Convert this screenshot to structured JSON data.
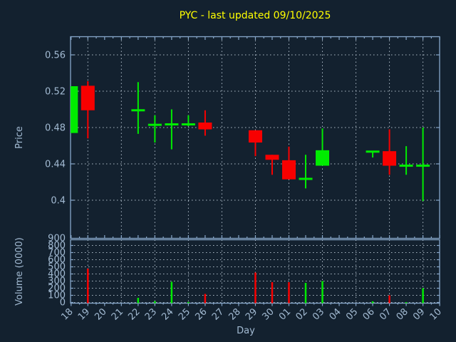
{
  "title": "PYC - last updated 09/10/2025",
  "colors": {
    "background": "#13212f",
    "axis_frame": "#87a7ca",
    "grid": "#c9d6e2",
    "tick_text": "#a3bbd3",
    "title_text": "#ffff00",
    "candle_up": "#00ec00",
    "candle_down": "#f80000"
  },
  "chart_data": [
    {
      "type": "candlestick",
      "title": "PYC - last updated 09/10/2025",
      "ylabel": "Price",
      "ylim": [
        0.3575,
        0.58
      ],
      "grid": "dotted, horizontal at yticks, vertical every other day starting 19",
      "legend": "none",
      "yticks": [
        {
          "label": "0.56",
          "value": 0.56
        },
        {
          "label": "0.52",
          "value": 0.52
        },
        {
          "label": "0.48",
          "value": 0.48
        },
        {
          "label": "0.44",
          "value": 0.44
        },
        {
          "label": "0.4",
          "value": 0.4
        }
      ],
      "categories": [
        "18",
        "19",
        "20",
        "21",
        "22",
        "23",
        "24",
        "25",
        "26",
        "27",
        "28",
        "29",
        "30",
        "01",
        "02",
        "03",
        "04",
        "05",
        "06",
        "07",
        "08",
        "09",
        "10"
      ],
      "candles": [
        {
          "day": "18",
          "open": 0.474,
          "high": 0.5255,
          "low": 0.474,
          "close": 0.5255,
          "color": "green"
        },
        {
          "day": "19",
          "open": 0.526,
          "high": 0.531,
          "low": 0.468,
          "close": 0.499,
          "color": "red"
        },
        {
          "day": "22",
          "open": 0.499,
          "high": 0.53,
          "low": 0.473,
          "close": 0.499,
          "color": "green"
        },
        {
          "day": "23",
          "open": 0.483,
          "high": 0.4935,
          "low": 0.4635,
          "close": 0.483,
          "color": "green"
        },
        {
          "day": "24",
          "open": 0.4835,
          "high": 0.5,
          "low": 0.456,
          "close": 0.4835,
          "color": "green"
        },
        {
          "day": "25",
          "open": 0.4835,
          "high": 0.4935,
          "low": 0.4815,
          "close": 0.4835,
          "color": "green"
        },
        {
          "day": "26",
          "open": 0.4855,
          "high": 0.499,
          "low": 0.471,
          "close": 0.478,
          "color": "red"
        },
        {
          "day": "29",
          "open": 0.477,
          "high": 0.477,
          "low": 0.4485,
          "close": 0.4635,
          "color": "red"
        },
        {
          "day": "30",
          "open": 0.45,
          "high": 0.45,
          "low": 0.428,
          "close": 0.4445,
          "color": "red"
        },
        {
          "day": "01",
          "open": 0.444,
          "high": 0.459,
          "low": 0.423,
          "close": 0.423,
          "color": "red"
        },
        {
          "day": "02",
          "open": 0.4235,
          "high": 0.45,
          "low": 0.413,
          "close": 0.4235,
          "color": "green"
        },
        {
          "day": "03",
          "open": 0.438,
          "high": 0.479,
          "low": 0.438,
          "close": 0.455,
          "color": "green"
        },
        {
          "day": "06",
          "open": 0.4535,
          "high": 0.4535,
          "low": 0.447,
          "close": 0.4535,
          "color": "green"
        },
        {
          "day": "07",
          "open": 0.454,
          "high": 0.478,
          "low": 0.428,
          "close": 0.438,
          "color": "red"
        },
        {
          "day": "08",
          "open": 0.438,
          "high": 0.4595,
          "low": 0.428,
          "close": 0.438,
          "color": "green"
        },
        {
          "day": "09",
          "open": 0.438,
          "high": 0.48,
          "low": 0.399,
          "close": 0.438,
          "color": "green"
        }
      ]
    },
    {
      "type": "bar",
      "ylabel": "Volume (0000)",
      "xlabel": "Day",
      "ylim": [
        0,
        900
      ],
      "grid": "dotted, horizontal every 100, vertical every other day starting 19",
      "yticks": [
        {
          "label": "900",
          "value": 900
        },
        {
          "label": "800",
          "value": 800
        },
        {
          "label": "700",
          "value": 700
        },
        {
          "label": "600",
          "value": 600
        },
        {
          "label": "500",
          "value": 500
        },
        {
          "label": "400",
          "value": 400
        },
        {
          "label": "300",
          "value": 300
        },
        {
          "label": "200",
          "value": 200
        },
        {
          "label": "100",
          "value": 100
        },
        {
          "label": "0",
          "value": 0
        }
      ],
      "categories": [
        "18",
        "19",
        "20",
        "21",
        "22",
        "23",
        "24",
        "25",
        "26",
        "27",
        "28",
        "29",
        "30",
        "01",
        "02",
        "03",
        "04",
        "05",
        "06",
        "07",
        "08",
        "09",
        "10"
      ],
      "bars": [
        {
          "day": "19",
          "value": 475,
          "color": "red"
        },
        {
          "day": "22",
          "value": 65,
          "color": "green"
        },
        {
          "day": "23",
          "value": 18,
          "color": "green"
        },
        {
          "day": "24",
          "value": 290,
          "color": "green"
        },
        {
          "day": "25",
          "value": 8,
          "color": "green"
        },
        {
          "day": "26",
          "value": 120,
          "color": "red"
        },
        {
          "day": "29",
          "value": 420,
          "color": "red"
        },
        {
          "day": "30",
          "value": 285,
          "color": "red"
        },
        {
          "day": "01",
          "value": 285,
          "color": "red"
        },
        {
          "day": "02",
          "value": 275,
          "color": "green"
        },
        {
          "day": "03",
          "value": 300,
          "color": "green"
        },
        {
          "day": "06",
          "value": 16,
          "color": "green"
        },
        {
          "day": "07",
          "value": 100,
          "color": "red"
        },
        {
          "day": "08",
          "value": 5,
          "color": "green"
        },
        {
          "day": "09",
          "value": 200,
          "color": "green"
        }
      ]
    }
  ]
}
